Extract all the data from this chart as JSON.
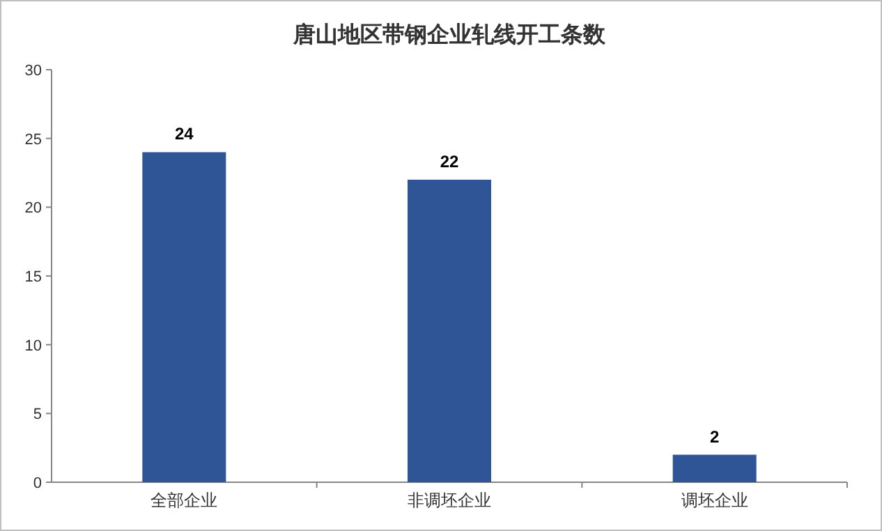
{
  "chart_data": {
    "type": "bar",
    "title": "唐山地区带钢企业轧线开工条数",
    "categories": [
      "全部企业",
      "非调坯企业",
      "调坯企业"
    ],
    "values": [
      24,
      22,
      2
    ],
    "color": "#2f5597",
    "ylim": [
      0,
      30
    ],
    "yticks": [
      0,
      5,
      10,
      15,
      20,
      25,
      30
    ],
    "data_labels": true
  }
}
